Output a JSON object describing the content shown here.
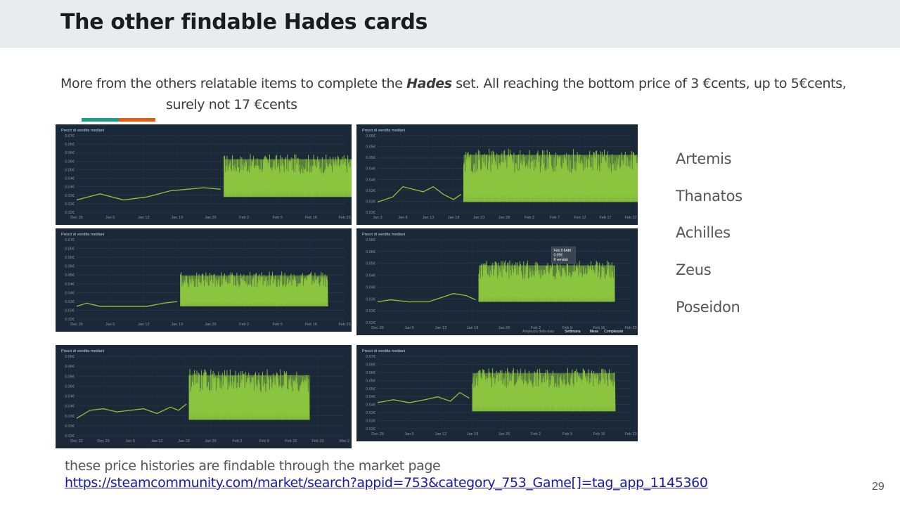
{
  "slide": {
    "title": "The other findable Hades cards",
    "desc_part1": "More from the others relatable items to complete the ",
    "desc_emph": "Hades",
    "desc_part2": " set. All reaching the bottom price of 3 €cents, up to 5€cents,",
    "desc_line2": "surely not 17 €cents",
    "accent_colors": [
      "#1a9e8a",
      "#e35c13"
    ],
    "card_names": [
      "Artemis",
      "Thanatos",
      "Achilles",
      "Zeus",
      "Poseidon"
    ],
    "footer_note": "these price histories are findable through the market page",
    "footer_link": "https://steamcommunity.com/market/search?appid=753&category_753_Game[]=tag_app_1145360",
    "page_number": "29"
  },
  "chart_data": [
    {
      "type": "line",
      "title": "Prezzi di vendita mediani",
      "ylim": [
        0.02,
        0.07
      ],
      "yticks": [
        "0.07€",
        "0.06€",
        "0.06€",
        "0.05€",
        "0.05€",
        "0.04€",
        "0.04€",
        "0.03€",
        "0.03€",
        "0.02€"
      ],
      "xticks": [
        "Dec 29",
        "Jan 5",
        "Jan 12",
        "Jan 19",
        "Jan 26",
        "Feb 2",
        "Feb 9",
        "Feb 16",
        "Feb 23"
      ],
      "line_color": "#8bc53f",
      "series": [
        {
          "x": [
            0,
            0.7,
            1.4,
            2.1,
            2.8,
            3.3,
            3.8,
            4.3
          ],
          "y": [
            0.028,
            0.032,
            0.028,
            0.03,
            0.034,
            0.035,
            0.036,
            0.035
          ]
        }
      ],
      "dense_range": [
        4.4,
        8.7
      ],
      "dense_low": 0.03,
      "dense_high": 0.058,
      "grid": true
    },
    {
      "type": "line",
      "title": "Prezzi di vendita mediani",
      "ylim": [
        0.03,
        0.06
      ],
      "yticks": [
        "0.06€",
        "0.05€",
        "0.05€",
        "0.04€",
        "0.04€",
        "0.03€",
        "0.03€",
        "0.03€"
      ],
      "xticks": [
        "Jan 3",
        "Jan 8",
        "Jan 13",
        "Jan 18",
        "Jan 23",
        "Jan 28",
        "Feb 2",
        "Feb 7",
        "Feb 12",
        "Feb 17",
        "Feb 22"
      ],
      "line_color": "#8bc53f",
      "series": [
        {
          "x": [
            0,
            0.6,
            1.0,
            1.4,
            1.8,
            2.2,
            2.6,
            3.0,
            3.3
          ],
          "y": [
            0.034,
            0.036,
            0.04,
            0.039,
            0.038,
            0.04,
            0.037,
            0.035,
            0.037
          ]
        }
      ],
      "dense_range": [
        3.4,
        10.7
      ],
      "dense_low": 0.034,
      "dense_high": 0.055,
      "grid": true
    },
    {
      "type": "line",
      "title": "Prezzi di vendita mediani",
      "ylim": [
        0.02,
        0.07
      ],
      "yticks": [
        "0.07€",
        "0.06€",
        "0.06€",
        "0.05€",
        "0.05€",
        "0.04€",
        "0.04€",
        "0.03€",
        "0.03€",
        "0.02€"
      ],
      "xticks": [
        "Dec 29",
        "Jan 5",
        "Jan 12",
        "Jan 19",
        "Jan 26",
        "Feb 2",
        "Feb 9",
        "Feb 16",
        "Feb 23"
      ],
      "line_color": "#8bc53f",
      "series": [
        {
          "x": [
            0,
            0.3,
            0.7,
            1.4,
            2.1,
            2.6,
            3.0
          ],
          "y": [
            0.028,
            0.03,
            0.028,
            0.028,
            0.028,
            0.03,
            0.031
          ]
        }
      ],
      "dense_range": [
        3.1,
        7.5
      ],
      "dense_low": 0.028,
      "dense_high": 0.05,
      "grid": true
    },
    {
      "type": "line",
      "title": "Prezzi di vendita mediani",
      "ylim": [
        0.02,
        0.06
      ],
      "yticks": [
        "0.06€",
        "0.06€",
        "0.05€",
        "0.04€",
        "0.04€",
        "0.03€",
        "0.03€",
        "0.02€"
      ],
      "xticks": [
        "Dec 29",
        "Jan 5",
        "Jan 12",
        "Jan 19",
        "Jan 26",
        "Feb 2",
        "Feb 9",
        "Feb 16",
        "Feb 23"
      ],
      "line_color": "#8bc53f",
      "series": [
        {
          "x": [
            0,
            0.4,
            1.0,
            1.6,
            2.0,
            2.4,
            2.8,
            3.1
          ],
          "y": [
            0.03,
            0.031,
            0.03,
            0.03,
            0.032,
            0.034,
            0.033,
            0.031
          ]
        }
      ],
      "dense_range": [
        3.2,
        7.5
      ],
      "dense_low": 0.03,
      "dense_high": 0.05,
      "grid": true,
      "tooltip": [
        "Feb 8 6AM",
        "0.05€",
        "8 venduti"
      ],
      "zoom_label": "Ampiezza della data",
      "zoom_options": [
        "Settimana",
        "Mese",
        "Complessivi"
      ]
    },
    {
      "type": "line",
      "title": "Prezzi di vendita mediani",
      "ylim": [
        0.02,
        0.07
      ],
      "yticks": [
        "0.06€",
        "0.06€",
        "0.05€",
        "0.05€",
        "0.04€",
        "0.04€",
        "0.03€",
        "0.03€",
        "0.02€"
      ],
      "xticks": [
        "Dec 22",
        "Dec 29",
        "Jan 5",
        "Jan 12",
        "Jan 19",
        "Jan 26",
        "Feb 2",
        "Feb 9",
        "Feb 16",
        "Feb 23",
        "Mar 2"
      ],
      "line_color": "#8bc53f",
      "series": [
        {
          "x": [
            0,
            0.5,
            1.0,
            1.5,
            2.0,
            2.5,
            3.0,
            3.5,
            3.8,
            4.1
          ],
          "y": [
            0.031,
            0.036,
            0.037,
            0.035,
            0.036,
            0.037,
            0.034,
            0.038,
            0.036,
            0.04
          ]
        }
      ],
      "dense_range": [
        4.2,
        8.7
      ],
      "dense_low": 0.03,
      "dense_high": 0.062,
      "grid": true
    },
    {
      "type": "line",
      "title": "Prezzi di vendita mediani",
      "ylim": [
        0.02,
        0.07
      ],
      "yticks": [
        "0.07€",
        "0.06€",
        "0.06€",
        "0.05€",
        "0.05€",
        "0.04€",
        "0.04€",
        "0.03€",
        "0.03€",
        "0.02€"
      ],
      "xticks": [
        "Dec 29",
        "Jan 5",
        "Jan 12",
        "Jan 19",
        "Jan 26",
        "Feb 2",
        "Feb 9",
        "Feb 16",
        "Feb 23"
      ],
      "line_color": "#8bc53f",
      "series": [
        {
          "x": [
            0,
            0.5,
            1.0,
            1.5,
            1.9,
            2.3,
            2.6,
            2.9
          ],
          "y": [
            0.038,
            0.04,
            0.038,
            0.04,
            0.042,
            0.039,
            0.045,
            0.041
          ]
        }
      ],
      "dense_range": [
        3.0,
        7.5
      ],
      "dense_low": 0.032,
      "dense_high": 0.062,
      "grid": true
    }
  ]
}
